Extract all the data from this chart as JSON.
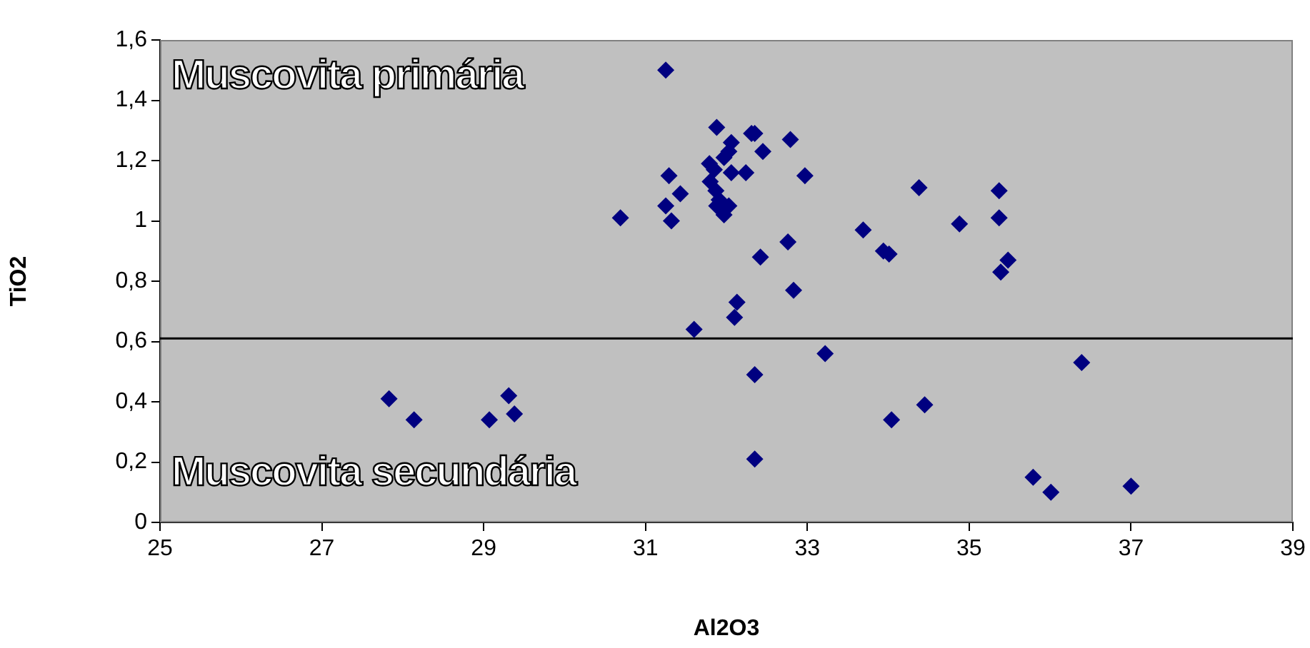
{
  "chart_data": {
    "type": "scatter",
    "xlabel": "Al2O3",
    "ylabel": "TiO2",
    "annotations": [
      "Muscovita primária",
      "Muscovita secundária"
    ],
    "x": [
      31.25,
      30.69,
      31.88,
      32.06,
      32.31,
      32.35,
      32.79,
      32.45,
      32.03,
      31.97,
      31.79,
      31.85,
      32.06,
      32.24,
      31.29,
      32.97,
      34.38,
      31.43,
      31.8,
      31.87,
      31.25,
      31.91,
      31.88,
      32.03,
      31.97,
      31.32,
      33.69,
      33.94,
      34.01,
      32.76,
      32.42,
      32.83,
      32.13,
      32.1,
      31.6,
      33.22,
      35.37,
      34.88,
      35.37,
      35.48,
      35.39,
      34.04,
      34.45,
      35.79,
      27.83,
      28.14,
      29.07,
      29.31,
      29.38,
      36.39,
      36.01,
      37.0,
      32.35,
      32.35
    ],
    "series": [
      {
        "color": "#000080",
        "values": [
          1.5,
          1.01,
          1.31,
          1.26,
          1.29,
          1.29,
          1.27,
          1.23,
          1.23,
          1.21,
          1.19,
          1.17,
          1.16,
          1.16,
          1.15,
          1.15,
          1.11,
          1.09,
          1.13,
          1.1,
          1.05,
          1.07,
          1.05,
          1.05,
          1.02,
          1.0,
          0.97,
          0.9,
          0.89,
          0.93,
          0.88,
          0.77,
          0.73,
          0.68,
          0.64,
          0.56,
          1.1,
          0.99,
          1.01,
          0.87,
          0.83,
          0.34,
          0.39,
          0.15,
          0.41,
          0.34,
          0.34,
          0.42,
          0.36,
          0.53,
          0.1,
          0.12,
          0.49,
          0.21
        ]
      }
    ],
    "marker": "diamond",
    "grid": false,
    "legend": false,
    "xlim": [
      25,
      39
    ],
    "xticks": [
      25,
      27,
      29,
      31,
      33,
      35,
      37,
      39
    ],
    "ylim": [
      0,
      1.6
    ],
    "yticks": [
      0,
      {
        "value": 0.2,
        "label": "0,2"
      },
      {
        "value": 0.4,
        "label": "0,4"
      },
      {
        "value": 0.6,
        "label": "0,6"
      },
      {
        "value": 0.8,
        "label": "0,8"
      },
      1,
      {
        "value": 1.2,
        "label": "1,2"
      },
      {
        "value": 1.4,
        "label": "1,4"
      },
      {
        "value": 1.6,
        "label": "1,6"
      }
    ],
    "ref_lines": [
      {
        "axis": "y",
        "value": 0.61,
        "color": "#000000"
      }
    ]
  }
}
